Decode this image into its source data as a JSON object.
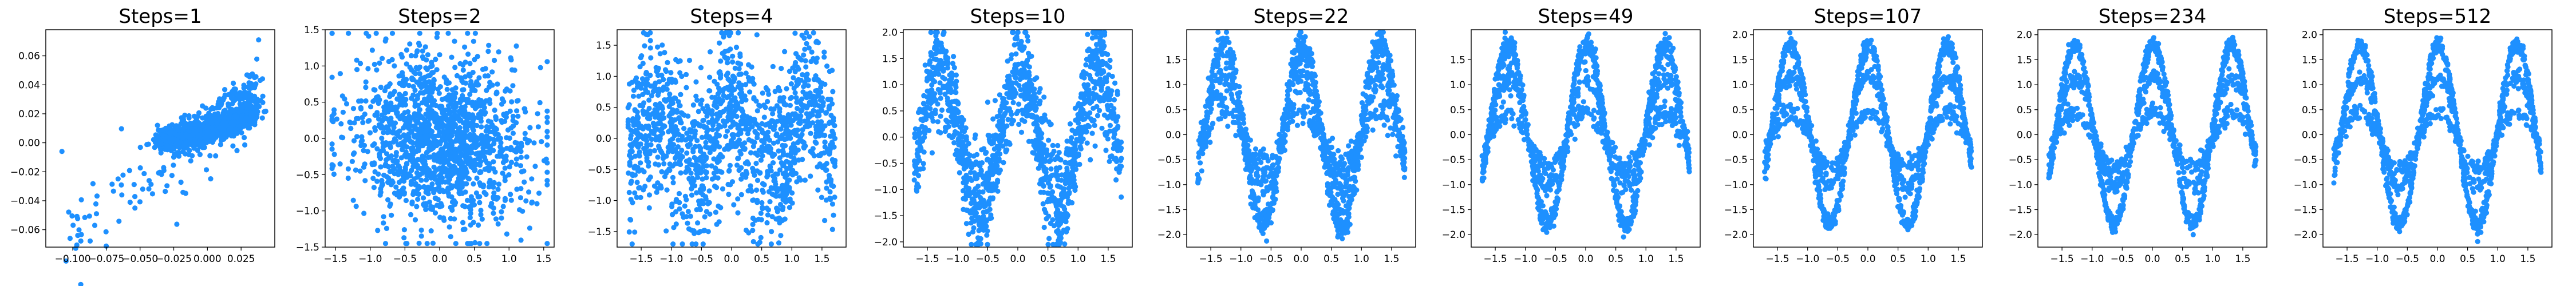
{
  "figure": {
    "marker_color": "#1e90ff",
    "background": "#ffffff"
  },
  "chart_data": [
    {
      "type": "scatter",
      "title": "Steps=1",
      "xlim": [
        -0.12,
        0.05
      ],
      "ylim": [
        -0.072,
        0.078
      ],
      "xticks": [
        -0.1,
        -0.075,
        -0.05,
        -0.025,
        0.0,
        0.025
      ],
      "xtick_labels": [
        "−0.100",
        "−0.075",
        "−0.050",
        "−0.025",
        "0.000",
        "0.025"
      ],
      "yticks": [
        -0.06,
        -0.04,
        -0.02,
        0.0,
        0.02,
        0.04,
        0.06
      ],
      "ytick_labels": [
        "−0.06",
        "−0.04",
        "−0.02",
        "0.00",
        "0.02",
        "0.04",
        "0.06"
      ],
      "pattern": "collapsed",
      "n_points": 1400
    },
    {
      "type": "scatter",
      "title": "Steps=2",
      "xlim": [
        -1.65,
        1.65
      ],
      "ylim": [
        -1.5,
        1.5
      ],
      "xticks": [
        -1.5,
        -1.0,
        -0.5,
        0.0,
        0.5,
        1.0,
        1.5
      ],
      "xtick_labels": [
        "−1.5",
        "−1.0",
        "−0.5",
        "0.0",
        "0.5",
        "1.0",
        "1.5"
      ],
      "yticks": [
        -1.5,
        -1.0,
        -0.5,
        0.0,
        0.5,
        1.0,
        1.5
      ],
      "ytick_labels": [
        "−1.5",
        "−1.0",
        "−0.5",
        "0.0",
        "0.5",
        "1.0",
        "1.5"
      ],
      "pattern": "gaussian",
      "n_points": 1500
    },
    {
      "type": "scatter",
      "title": "Steps=4",
      "xlim": [
        -1.9,
        1.9
      ],
      "ylim": [
        -1.75,
        1.75
      ],
      "xticks": [
        -1.5,
        -1.0,
        -0.5,
        0.0,
        0.5,
        1.0,
        1.5
      ],
      "xtick_labels": [
        "−1.5",
        "−1.0",
        "−0.5",
        "0.0",
        "0.5",
        "1.0",
        "1.5"
      ],
      "yticks": [
        -1.5,
        -1.0,
        -0.5,
        0.0,
        0.5,
        1.0,
        1.5
      ],
      "ytick_labels": [
        "−1.5",
        "−1.0",
        "−0.5",
        "0.0",
        "0.5",
        "1.0",
        "1.5"
      ],
      "pattern": "sine",
      "noise": 0.8,
      "amp_scale": 0.55,
      "n_points": 1400
    },
    {
      "type": "scatter",
      "title": "Steps=10",
      "xlim": [
        -1.9,
        1.9
      ],
      "ylim": [
        -2.1,
        2.05
      ],
      "xticks": [
        -1.5,
        -1.0,
        -0.5,
        0.0,
        0.5,
        1.0,
        1.5
      ],
      "xtick_labels": [
        "−1.5",
        "−1.0",
        "−0.5",
        "0.0",
        "0.5",
        "1.0",
        "1.5"
      ],
      "yticks": [
        -2.0,
        -1.5,
        -1.0,
        -0.5,
        0.0,
        0.5,
        1.0,
        1.5,
        2.0
      ],
      "ytick_labels": [
        "−2.0",
        "−1.5",
        "−1.0",
        "−0.5",
        "0.0",
        "0.5",
        "1.0",
        "1.5",
        "2.0"
      ],
      "pattern": "sine",
      "noise": 0.38,
      "amp_scale": 0.9,
      "n_points": 1400
    },
    {
      "type": "scatter",
      "title": "Steps=22",
      "xlim": [
        -1.9,
        1.9
      ],
      "ylim": [
        -2.25,
        2.1
      ],
      "xticks": [
        -1.5,
        -1.0,
        -0.5,
        0.0,
        0.5,
        1.0,
        1.5
      ],
      "xtick_labels": [
        "−1.5",
        "−1.0",
        "−0.5",
        "0.0",
        "0.5",
        "1.0",
        "1.5"
      ],
      "yticks": [
        -2.0,
        -1.5,
        -1.0,
        -0.5,
        0.0,
        0.5,
        1.0,
        1.5
      ],
      "ytick_labels": [
        "−2.0",
        "−1.5",
        "−1.0",
        "−0.5",
        "0.0",
        "0.5",
        "1.0",
        "1.5"
      ],
      "pattern": "sine",
      "noise": 0.17,
      "amp_scale": 1.0,
      "n_points": 1400
    },
    {
      "type": "scatter",
      "title": "Steps=49",
      "xlim": [
        -1.9,
        1.9
      ],
      "ylim": [
        -2.25,
        2.1
      ],
      "xticks": [
        -1.5,
        -1.0,
        -0.5,
        0.0,
        0.5,
        1.0,
        1.5
      ],
      "xtick_labels": [
        "−1.5",
        "−1.0",
        "−0.5",
        "0.0",
        "0.5",
        "1.0",
        "1.5"
      ],
      "yticks": [
        -2.0,
        -1.5,
        -1.0,
        -0.5,
        0.0,
        0.5,
        1.0,
        1.5
      ],
      "ytick_labels": [
        "−2.0",
        "−1.5",
        "−1.0",
        "−0.5",
        "0.0",
        "0.5",
        "1.0",
        "1.5"
      ],
      "pattern": "sine",
      "noise": 0.11,
      "amp_scale": 1.0,
      "n_points": 1400
    },
    {
      "type": "scatter",
      "title": "Steps=107",
      "xlim": [
        -1.9,
        1.9
      ],
      "ylim": [
        -2.25,
        2.1
      ],
      "xticks": [
        -1.5,
        -1.0,
        -0.5,
        0.0,
        0.5,
        1.0,
        1.5
      ],
      "xtick_labels": [
        "−1.5",
        "−1.0",
        "−0.5",
        "0.0",
        "0.5",
        "1.0",
        "1.5"
      ],
      "yticks": [
        -2.0,
        -1.5,
        -1.0,
        -0.5,
        0.0,
        0.5,
        1.0,
        1.5,
        2.0
      ],
      "ytick_labels": [
        "−2.0",
        "−1.5",
        "−1.0",
        "−0.5",
        "0.0",
        "0.5",
        "1.0",
        "1.5",
        "2.0"
      ],
      "pattern": "sine",
      "noise": 0.09,
      "amp_scale": 1.0,
      "n_points": 1400
    },
    {
      "type": "scatter",
      "title": "Steps=234",
      "xlim": [
        -1.9,
        1.9
      ],
      "ylim": [
        -2.25,
        2.1
      ],
      "xticks": [
        -1.5,
        -1.0,
        -0.5,
        0.0,
        0.5,
        1.0,
        1.5
      ],
      "xtick_labels": [
        "−1.5",
        "−1.0",
        "−0.5",
        "0.0",
        "0.5",
        "1.0",
        "1.5"
      ],
      "yticks": [
        -2.0,
        -1.5,
        -1.0,
        -0.5,
        0.0,
        0.5,
        1.0,
        1.5,
        2.0
      ],
      "ytick_labels": [
        "−2.0",
        "−1.5",
        "−1.0",
        "−0.5",
        "0.0",
        "0.5",
        "1.0",
        "1.5",
        "2.0"
      ],
      "pattern": "sine",
      "noise": 0.085,
      "amp_scale": 1.0,
      "n_points": 1400
    },
    {
      "type": "scatter",
      "title": "Steps=512",
      "xlim": [
        -1.9,
        1.9
      ],
      "ylim": [
        -2.25,
        2.1
      ],
      "xticks": [
        -1.5,
        -1.0,
        -0.5,
        0.0,
        0.5,
        1.0,
        1.5
      ],
      "xtick_labels": [
        "−1.5",
        "−1.0",
        "−0.5",
        "0.0",
        "0.5",
        "1.0",
        "1.5"
      ],
      "yticks": [
        -2.0,
        -1.5,
        -1.0,
        -0.5,
        0.0,
        0.5,
        1.0,
        1.5,
        2.0
      ],
      "ytick_labels": [
        "−2.0",
        "−1.5",
        "−1.0",
        "−0.5",
        "0.0",
        "0.5",
        "1.0",
        "1.5",
        "2.0"
      ],
      "pattern": "sine",
      "noise": 0.08,
      "amp_scale": 1.0,
      "n_points": 1400
    }
  ]
}
